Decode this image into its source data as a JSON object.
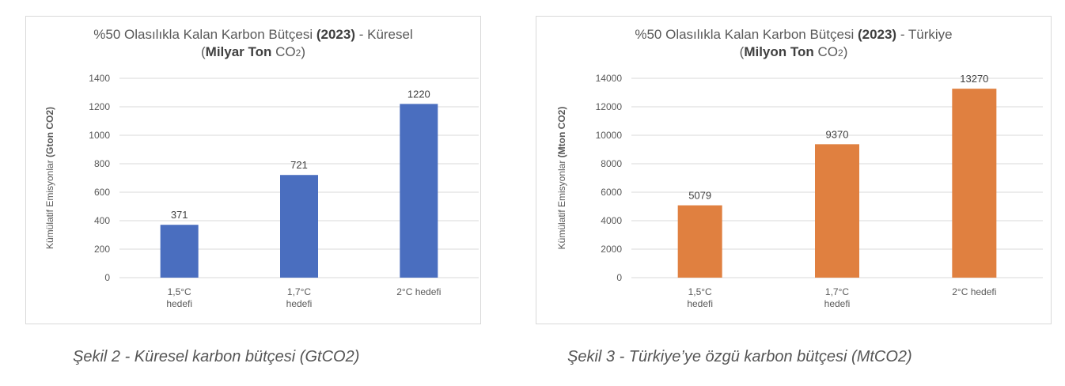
{
  "chart_data": [
    {
      "type": "bar",
      "title_main": "%50 Olasılıkla Kalan Karbon Bütçesi ",
      "title_year": "(2023)",
      "title_suffix": " - Küresel",
      "subtitle_open": "(",
      "subtitle_bold": "Milyar Ton",
      "subtitle_unit": " CO",
      "subtitle_sub": "2",
      "subtitle_close": ")",
      "ylabel_prefix": "Kümülatif Emisyonlar  ",
      "ylabel_bold": "(Gton CO2)",
      "categories": [
        [
          "1,5°C",
          "hedefi"
        ],
        [
          "1,7°C",
          "hedefi"
        ],
        [
          "2°C hedefi"
        ]
      ],
      "values": [
        371,
        721,
        1220
      ],
      "ylim": [
        0,
        1400
      ],
      "yticks": [
        0,
        200,
        400,
        600,
        800,
        1000,
        1200,
        1400
      ],
      "grid": true,
      "color": "#4a6ebf"
    },
    {
      "type": "bar",
      "title_main": "%50 Olasılıkla Kalan Karbon Bütçesi ",
      "title_year": "(2023)",
      "title_suffix": " - Türkiye",
      "subtitle_open": "(",
      "subtitle_bold": "Milyon Ton",
      "subtitle_unit": " CO",
      "subtitle_sub": "2",
      "subtitle_close": ")",
      "ylabel_prefix": "Kümülatif Emisyonlar  ",
      "ylabel_bold": "(Mton CO2)",
      "categories": [
        [
          "1,5°C",
          "hedefi"
        ],
        [
          "1,7°C",
          "hedefi"
        ],
        [
          "2°C hedefi"
        ]
      ],
      "values": [
        5079,
        9370,
        13270
      ],
      "ylim": [
        0,
        14000
      ],
      "yticks": [
        0,
        2000,
        4000,
        6000,
        8000,
        10000,
        12000,
        14000
      ],
      "grid": true,
      "color": "#e08040"
    }
  ],
  "captions": {
    "left": "Şekil 2 - Küresel karbon bütçesi (GtCO2)",
    "right": "Şekil 3 - Türkiye’ye özgü karbon bütçesi (MtCO2)"
  }
}
